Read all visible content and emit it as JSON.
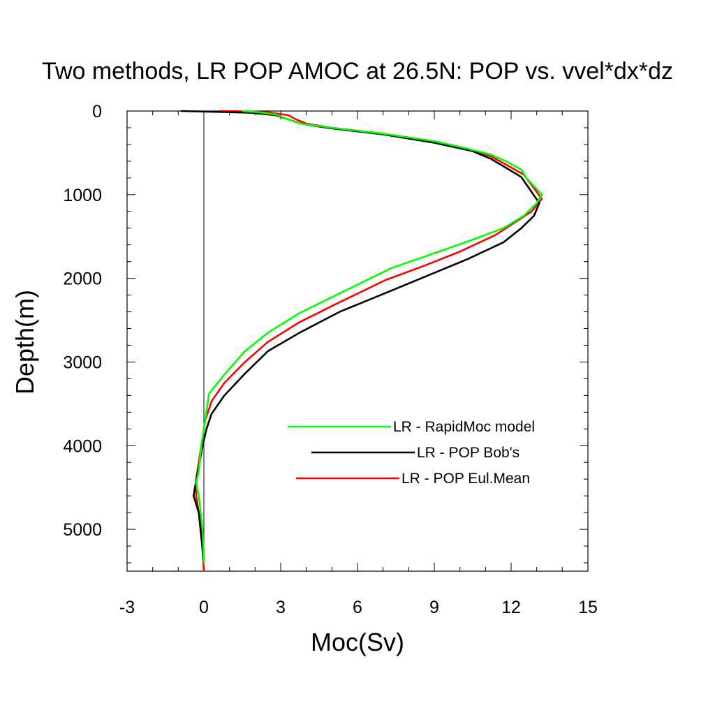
{
  "chart_data": {
    "type": "line",
    "title": "Two methods, LR POP AMOC at 26.5N: POP vs. vvel*dx*dz",
    "xlabel": "Moc(Sv)",
    "ylabel": "Depth(m)",
    "xlim": [
      -3,
      15
    ],
    "ylim": [
      0,
      5500
    ],
    "y_inverted": true,
    "x_ticks": [
      -3,
      0,
      3,
      6,
      9,
      12,
      15
    ],
    "y_ticks": [
      0,
      1000,
      2000,
      3000,
      4000,
      5000
    ],
    "legend_position": "lower-right",
    "reference_line_x": 0,
    "series": [
      {
        "name": "LR - RapidMoc model",
        "color": "#00ff00",
        "points": [
          [
            1.5,
            0
          ],
          [
            2.0,
            10
          ],
          [
            2.8,
            40
          ],
          [
            3.3,
            100
          ],
          [
            3.8,
            150
          ],
          [
            5.0,
            200
          ],
          [
            7.0,
            270
          ],
          [
            9.0,
            360
          ],
          [
            10.3,
            450
          ],
          [
            11.2,
            520
          ],
          [
            11.8,
            600
          ],
          [
            12.4,
            700
          ],
          [
            12.6,
            800
          ],
          [
            13.2,
            1000
          ],
          [
            13.0,
            1100
          ],
          [
            12.5,
            1250
          ],
          [
            11.7,
            1400
          ],
          [
            10.3,
            1560
          ],
          [
            8.8,
            1720
          ],
          [
            7.3,
            1880
          ],
          [
            5.3,
            2180
          ],
          [
            3.7,
            2420
          ],
          [
            2.5,
            2650
          ],
          [
            1.6,
            2870
          ],
          [
            0.8,
            3150
          ],
          [
            0.2,
            3380
          ],
          [
            0.05,
            3700
          ],
          [
            -0.1,
            4000
          ],
          [
            -0.2,
            4300
          ],
          [
            -0.3,
            4450
          ],
          [
            -0.2,
            4600
          ],
          [
            -0.05,
            5000
          ],
          [
            0.0,
            5400
          ]
        ]
      },
      {
        "name": "LR - POP Bob's",
        "color": "#000000",
        "points": [
          [
            -0.9,
            0
          ],
          [
            0.5,
            10
          ],
          [
            1.8,
            20
          ],
          [
            2.8,
            50
          ],
          [
            3.3,
            100
          ],
          [
            3.8,
            150
          ],
          [
            4.8,
            200
          ],
          [
            7.0,
            280
          ],
          [
            9.0,
            380
          ],
          [
            10.5,
            480
          ],
          [
            11.2,
            570
          ],
          [
            11.7,
            660
          ],
          [
            12.4,
            790
          ],
          [
            13.1,
            1100
          ],
          [
            12.9,
            1250
          ],
          [
            12.4,
            1400
          ],
          [
            11.7,
            1570
          ],
          [
            10.3,
            1770
          ],
          [
            8.8,
            1960
          ],
          [
            7.3,
            2150
          ],
          [
            5.3,
            2400
          ],
          [
            3.8,
            2640
          ],
          [
            2.5,
            2870
          ],
          [
            1.6,
            3140
          ],
          [
            0.8,
            3400
          ],
          [
            0.3,
            3620
          ],
          [
            0.1,
            3800
          ],
          [
            -0.05,
            4000
          ],
          [
            -0.2,
            4250
          ],
          [
            -0.35,
            4500
          ],
          [
            -0.4,
            4600
          ],
          [
            -0.2,
            4800
          ],
          [
            0.0,
            5400
          ]
        ]
      },
      {
        "name": "LR - POP Eul.Mean",
        "color": "#ff0000",
        "points": [
          [
            0.6,
            0
          ],
          [
            1.5,
            5
          ],
          [
            2.5,
            15
          ],
          [
            3.3,
            50
          ],
          [
            3.6,
            100
          ],
          [
            4.0,
            150
          ],
          [
            5.0,
            200
          ],
          [
            7.0,
            270
          ],
          [
            9.0,
            370
          ],
          [
            10.4,
            460
          ],
          [
            11.2,
            540
          ],
          [
            11.8,
            640
          ],
          [
            12.5,
            760
          ],
          [
            13.2,
            1050
          ],
          [
            12.8,
            1200
          ],
          [
            12.2,
            1320
          ],
          [
            11.4,
            1480
          ],
          [
            10.0,
            1680
          ],
          [
            8.6,
            1850
          ],
          [
            7.1,
            2020
          ],
          [
            5.2,
            2300
          ],
          [
            3.7,
            2530
          ],
          [
            2.5,
            2760
          ],
          [
            1.6,
            3000
          ],
          [
            0.8,
            3250
          ],
          [
            0.3,
            3470
          ],
          [
            0.05,
            3700
          ],
          [
            -0.1,
            4000
          ],
          [
            -0.2,
            4200
          ],
          [
            -0.3,
            4400
          ],
          [
            -0.3,
            4600
          ],
          [
            -0.1,
            5000
          ],
          [
            0.0,
            5500
          ]
        ]
      }
    ]
  }
}
